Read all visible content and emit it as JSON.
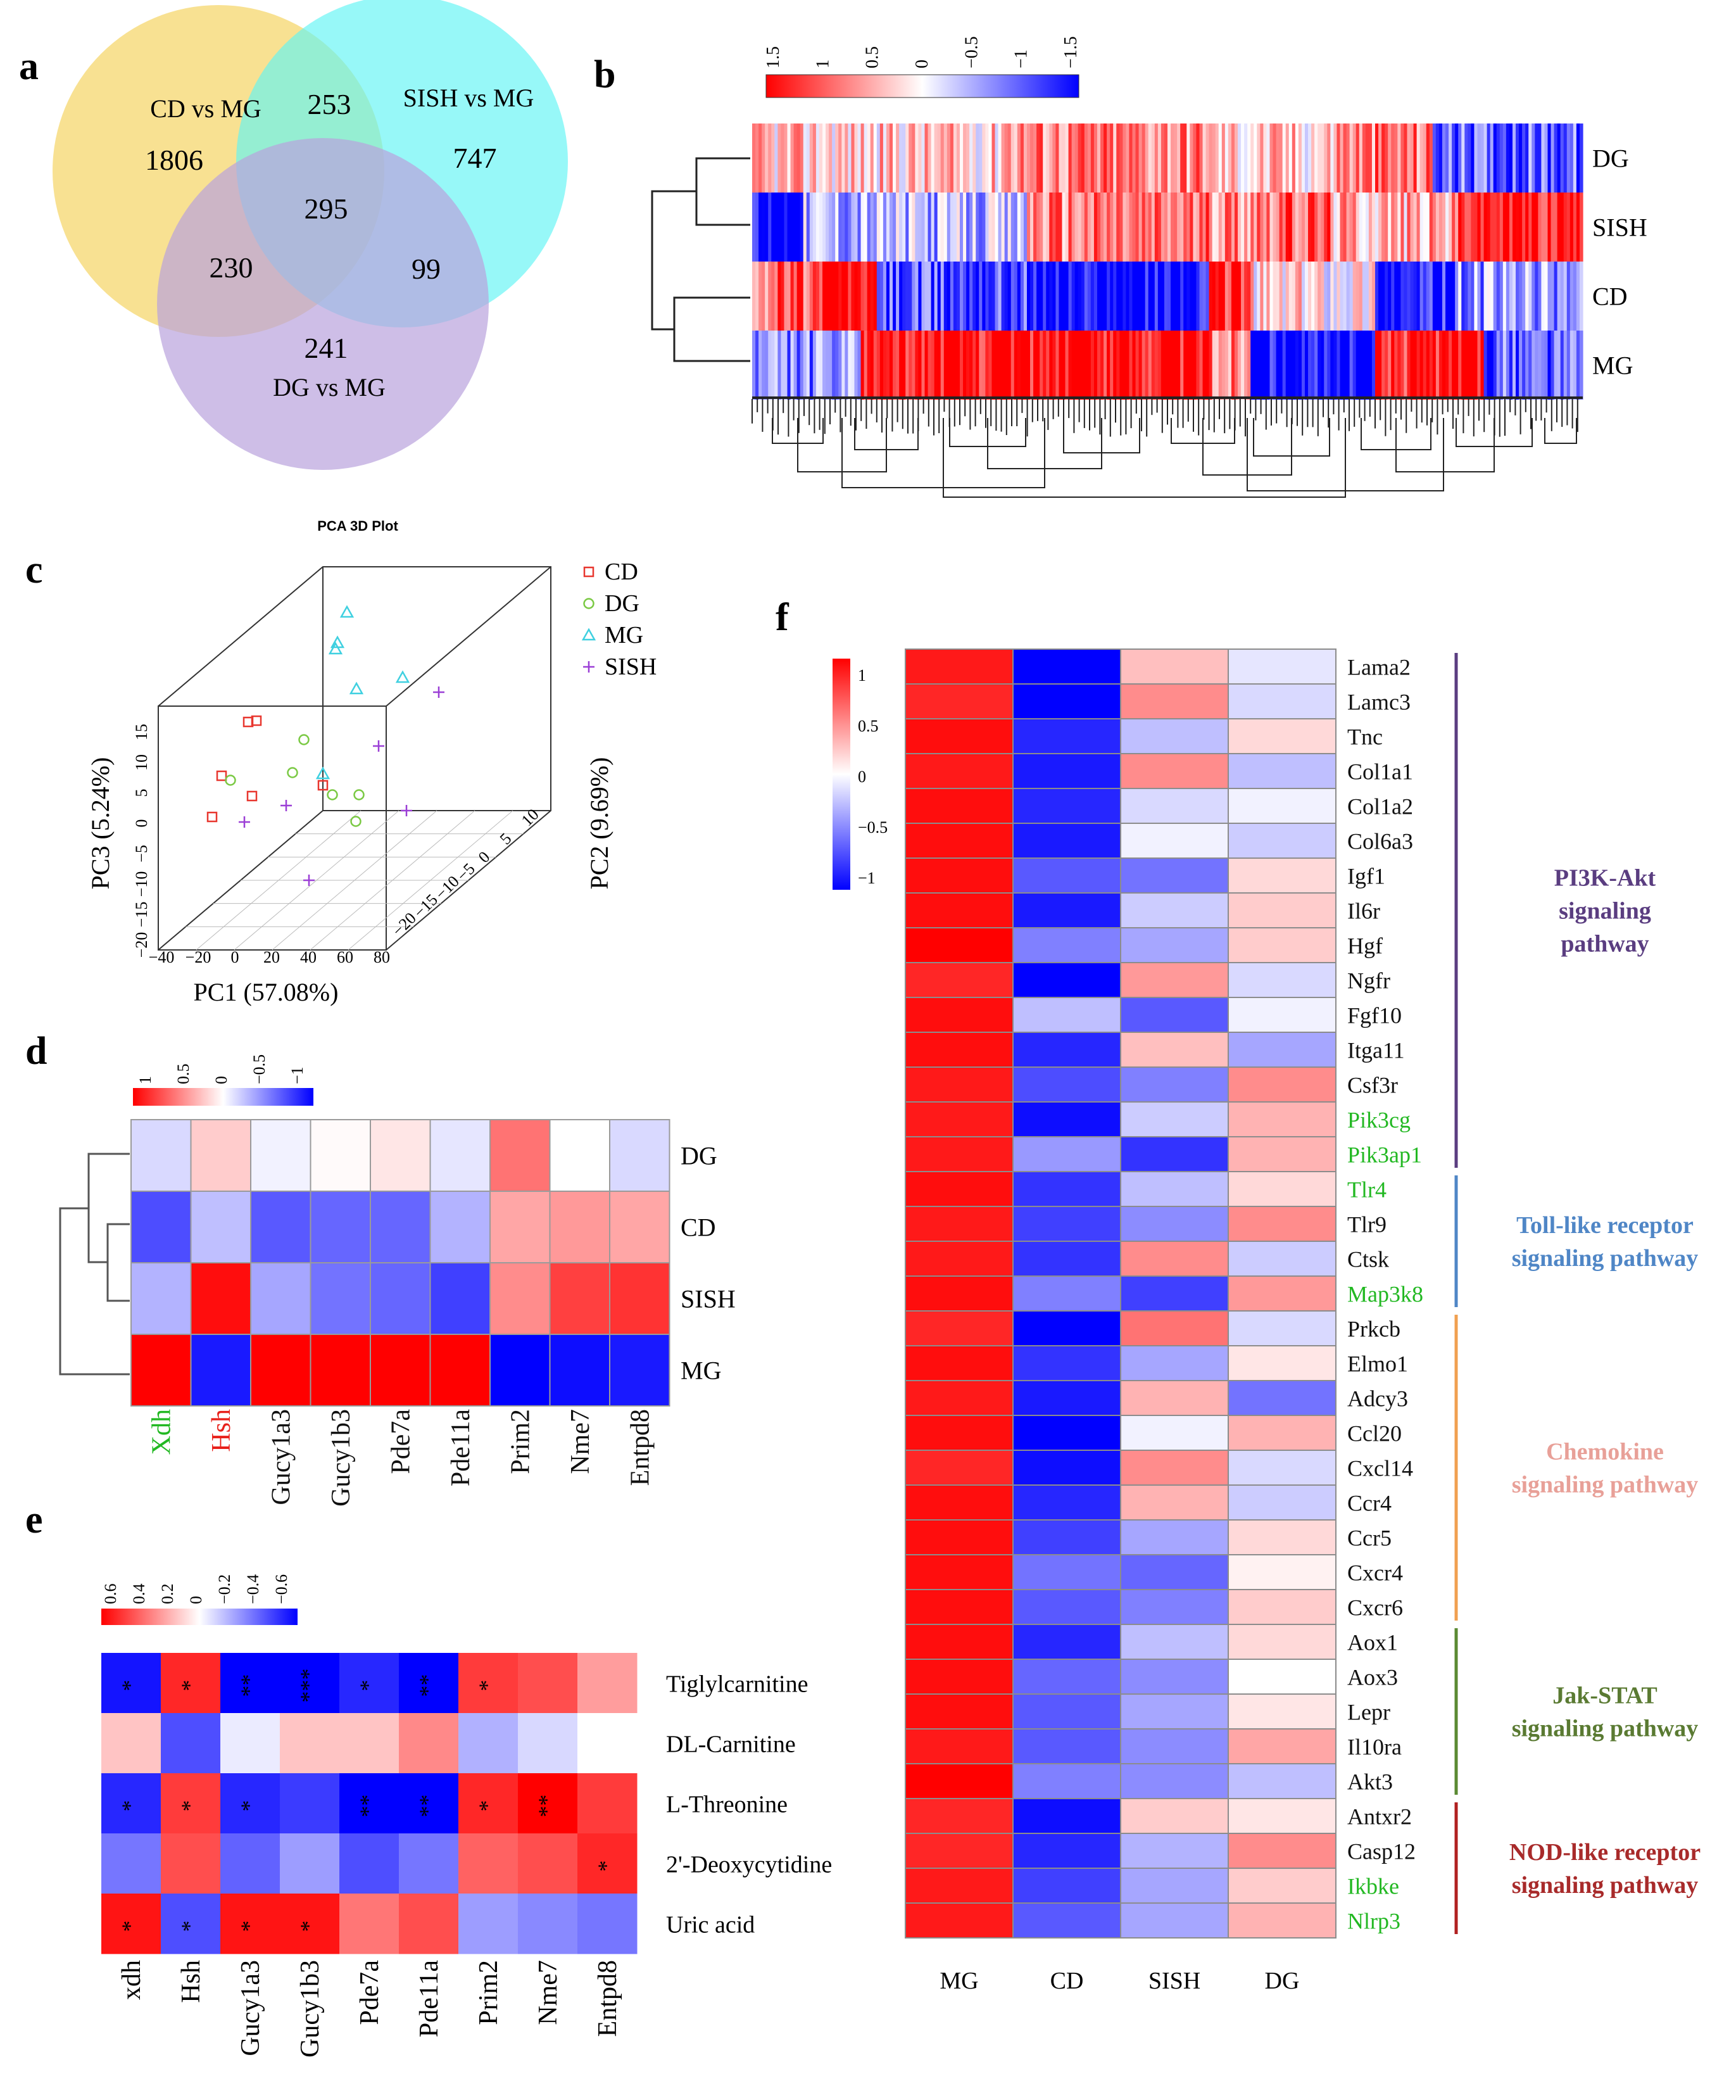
{
  "panels": {
    "a": "a",
    "b": "b",
    "c": "c",
    "d": "d",
    "e": "e",
    "f": "f"
  },
  "venn": {
    "sets": [
      {
        "label": "CD vs MG",
        "color": "#f5d76e"
      },
      {
        "label": "SISH vs MG",
        "color": "#5ff5f5"
      },
      {
        "label": "DG vs MG",
        "color": "#b9a3dd"
      }
    ],
    "counts": {
      "cd_only": "1806",
      "sish_only": "747",
      "dg_only": "241",
      "cd_sish": "253",
      "cd_dg": "230",
      "sish_dg": "99",
      "all": "295"
    }
  },
  "heatmap_b": {
    "scale_ticks": [
      "1.5",
      "1",
      "0.5",
      "0",
      "−0.5",
      "−1",
      "−1.5"
    ],
    "rows": [
      "DG",
      "SISH",
      "CD",
      "MG"
    ]
  },
  "pca": {
    "title": "PCA 3D Plot",
    "xlabel": "PC1 (57.08%)",
    "ylabel": "PC2 (9.69%)",
    "zlabel": "PC3 (5.24%)",
    "x_ticks": [
      "−40",
      "−20",
      "0",
      "20",
      "40",
      "60",
      "80"
    ],
    "y_ticks": [
      "−20",
      "−15",
      "−10",
      "−5",
      "0",
      "5",
      "10"
    ],
    "z_ticks": [
      "−20",
      "−15",
      "−10",
      "−5",
      "0",
      "5",
      "10",
      "15"
    ],
    "legend": [
      {
        "label": "CD",
        "color": "#e8372f",
        "symbol": "square"
      },
      {
        "label": "DG",
        "color": "#7ac943",
        "symbol": "circle"
      },
      {
        "label": "MG",
        "color": "#3fd0e0",
        "symbol": "triangle"
      },
      {
        "label": "SISH",
        "color": "#9b3fd6",
        "symbol": "plus"
      }
    ]
  },
  "heatmap_d": {
    "scale_ticks": [
      "1",
      "0.5",
      "0",
      "−0.5",
      "−1"
    ],
    "rows": [
      "DG",
      "CD",
      "SISH",
      "MG"
    ],
    "cols": [
      {
        "label": "Xdh",
        "color": "#22b822"
      },
      {
        "label": "Hsh",
        "color": "#e8201a"
      },
      {
        "label": "Gucy1a3",
        "color": "#111111"
      },
      {
        "label": "Gucy1b3",
        "color": "#111111"
      },
      {
        "label": "Pde7a",
        "color": "#111111"
      },
      {
        "label": "Pde11a",
        "color": "#111111"
      },
      {
        "label": "Prim2",
        "color": "#111111"
      },
      {
        "label": "Nme7",
        "color": "#111111"
      },
      {
        "label": "Entpd8",
        "color": "#111111"
      }
    ],
    "values": [
      [
        -0.15,
        0.2,
        -0.05,
        0.02,
        0.1,
        -0.1,
        0.55,
        0.0,
        -0.15
      ],
      [
        -0.7,
        -0.25,
        -0.65,
        -0.6,
        -0.6,
        -0.3,
        0.35,
        0.4,
        0.35
      ],
      [
        -0.3,
        0.95,
        -0.35,
        -0.55,
        -0.6,
        -0.75,
        0.45,
        0.75,
        0.8
      ],
      [
        1.0,
        -0.9,
        1.0,
        1.0,
        1.0,
        1.0,
        -1.0,
        -0.95,
        -0.9
      ]
    ]
  },
  "heatmap_e": {
    "scale_ticks": [
      "0.6",
      "0.4",
      "0.2",
      "0",
      "−0.2",
      "−0.4",
      "−0.6"
    ],
    "rows": [
      "Tiglylcarnitine",
      "DL-Carnitine",
      "L-Threonine",
      "2'-Deoxycytidine",
      "Uric acid"
    ],
    "cols": [
      "xdh",
      "Hsh",
      "Gucy1a3",
      "Gucy1b3",
      "Pde7a",
      "Pde11a",
      "Prim2",
      "Nme7",
      "Entpd8"
    ],
    "values": [
      [
        -0.6,
        0.55,
        -0.65,
        -0.7,
        -0.55,
        -0.65,
        0.5,
        0.45,
        0.25
      ],
      [
        0.15,
        -0.45,
        -0.05,
        0.15,
        0.15,
        0.3,
        -0.2,
        -0.1,
        0.0
      ],
      [
        -0.55,
        0.5,
        -0.55,
        -0.5,
        -0.7,
        -0.7,
        0.55,
        0.65,
        0.5
      ],
      [
        -0.35,
        0.45,
        -0.4,
        -0.25,
        -0.45,
        -0.35,
        0.4,
        0.45,
        0.55
      ],
      [
        0.6,
        -0.45,
        0.6,
        0.6,
        0.35,
        0.45,
        -0.25,
        -0.3,
        -0.35
      ]
    ],
    "stars": [
      [
        "*",
        "*",
        "**",
        "***",
        "*",
        "**",
        "*",
        "",
        ""
      ],
      [
        "",
        "",
        "",
        "",
        "",
        "",
        "",
        "",
        ""
      ],
      [
        "*",
        "*",
        "*",
        "",
        "**",
        "**",
        "*",
        "**",
        ""
      ],
      [
        "",
        "",
        "",
        "",
        "",
        "",
        "",
        "",
        "*"
      ],
      [
        "*",
        "*",
        "*",
        "*",
        "",
        "",
        "",
        "",
        ""
      ]
    ]
  },
  "heatmap_f": {
    "scale_ticks": [
      "1",
      "0.5",
      "0",
      "−0.5",
      "−1"
    ],
    "cols": [
      "MG",
      "CD",
      "SISH",
      "DG"
    ],
    "genes": [
      {
        "name": "Lama2",
        "color": "#111111",
        "values": [
          0.9,
          -1.0,
          0.25,
          -0.1
        ]
      },
      {
        "name": "Lamc3",
        "color": "#111111",
        "values": [
          0.85,
          -1.0,
          0.45,
          -0.15
        ]
      },
      {
        "name": "Tnc",
        "color": "#111111",
        "values": [
          0.95,
          -0.85,
          -0.25,
          0.15
        ]
      },
      {
        "name": "Col1a1",
        "color": "#111111",
        "values": [
          0.9,
          -0.9,
          0.45,
          -0.25
        ]
      },
      {
        "name": "Col1a2",
        "color": "#111111",
        "values": [
          0.95,
          -0.85,
          -0.15,
          -0.05
        ]
      },
      {
        "name": "Col6a3",
        "color": "#111111",
        "values": [
          0.95,
          -0.9,
          -0.05,
          -0.2
        ]
      },
      {
        "name": "Igf1",
        "color": "#111111",
        "values": [
          0.95,
          -0.65,
          -0.55,
          0.15
        ]
      },
      {
        "name": "Il6r",
        "color": "#111111",
        "values": [
          0.95,
          -0.9,
          -0.2,
          0.2
        ]
      },
      {
        "name": "Hgf",
        "color": "#111111",
        "values": [
          1.0,
          -0.5,
          -0.35,
          0.2
        ]
      },
      {
        "name": "Ngfr",
        "color": "#111111",
        "values": [
          0.85,
          -1.0,
          0.4,
          -0.15
        ]
      },
      {
        "name": "Fgf10",
        "color": "#111111",
        "values": [
          0.95,
          -0.25,
          -0.65,
          -0.05
        ]
      },
      {
        "name": "Itga11",
        "color": "#111111",
        "values": [
          0.95,
          -0.85,
          0.25,
          -0.35
        ]
      },
      {
        "name": "Csf3r",
        "color": "#111111",
        "values": [
          0.9,
          -0.7,
          -0.5,
          0.45
        ]
      },
      {
        "name": "Pik3cg",
        "color": "#22b822",
        "values": [
          0.9,
          -0.95,
          -0.2,
          0.3
        ]
      },
      {
        "name": "Pik3ap1",
        "color": "#22b822",
        "values": [
          0.9,
          -0.4,
          -0.8,
          0.3
        ]
      },
      {
        "name": "Tlr4",
        "color": "#22b822",
        "values": [
          0.95,
          -0.8,
          -0.25,
          0.15
        ]
      },
      {
        "name": "Tlr9",
        "color": "#111111",
        "values": [
          0.9,
          -0.75,
          -0.45,
          0.45
        ]
      },
      {
        "name": "Ctsk",
        "color": "#111111",
        "values": [
          0.9,
          -0.8,
          0.45,
          -0.2
        ]
      },
      {
        "name": "Map3k8",
        "color": "#22b822",
        "values": [
          0.95,
          -0.5,
          -0.75,
          0.4
        ]
      },
      {
        "name": "Prkcb",
        "color": "#111111",
        "values": [
          0.85,
          -1.0,
          0.55,
          -0.15
        ]
      },
      {
        "name": "Elmo1",
        "color": "#111111",
        "values": [
          0.95,
          -0.8,
          -0.35,
          0.1
        ]
      },
      {
        "name": "Adcy3",
        "color": "#111111",
        "values": [
          0.9,
          -0.9,
          0.3,
          -0.55
        ]
      },
      {
        "name": "Ccl20",
        "color": "#111111",
        "values": [
          0.95,
          -1.0,
          -0.05,
          0.3
        ]
      },
      {
        "name": "Cxcl14",
        "color": "#111111",
        "values": [
          0.85,
          -0.95,
          0.45,
          -0.15
        ]
      },
      {
        "name": "Ccr4",
        "color": "#111111",
        "values": [
          0.95,
          -0.85,
          0.3,
          -0.2
        ]
      },
      {
        "name": "Ccr5",
        "color": "#111111",
        "values": [
          0.95,
          -0.75,
          -0.35,
          0.15
        ]
      },
      {
        "name": "Cxcr4",
        "color": "#111111",
        "values": [
          0.95,
          -0.55,
          -0.6,
          0.05
        ]
      },
      {
        "name": "Cxcr6",
        "color": "#111111",
        "values": [
          0.95,
          -0.65,
          -0.5,
          0.2
        ]
      },
      {
        "name": "Aox1",
        "color": "#111111",
        "values": [
          0.95,
          -0.85,
          -0.25,
          0.15
        ]
      },
      {
        "name": "Aox3",
        "color": "#111111",
        "values": [
          0.95,
          -0.6,
          -0.45,
          0.0
        ]
      },
      {
        "name": "Lepr",
        "color": "#111111",
        "values": [
          0.95,
          -0.65,
          -0.35,
          0.1
        ]
      },
      {
        "name": "Il10ra",
        "color": "#111111",
        "values": [
          0.9,
          -0.65,
          -0.45,
          0.35
        ]
      },
      {
        "name": "Akt3",
        "color": "#111111",
        "values": [
          1.0,
          -0.5,
          -0.45,
          -0.25
        ]
      },
      {
        "name": "Antxr2",
        "color": "#111111",
        "values": [
          0.85,
          -0.95,
          0.2,
          0.1
        ]
      },
      {
        "name": "Casp12",
        "color": "#111111",
        "values": [
          0.85,
          -0.85,
          -0.3,
          0.45
        ]
      },
      {
        "name": "Ikbke",
        "color": "#22b822",
        "values": [
          0.9,
          -0.75,
          -0.35,
          0.2
        ]
      },
      {
        "name": "Nlrp3",
        "color": "#22b822",
        "values": [
          0.9,
          -0.65,
          -0.35,
          0.3
        ]
      }
    ],
    "pathways": [
      {
        "lines": [
          "PI3K-Akt",
          "signaling",
          "pathway"
        ],
        "color": "#5a3d80",
        "start": 0,
        "end": 14
      },
      {
        "lines": [
          "Toll-like receptor",
          "signaling pathway"
        ],
        "color": "#4f86c6",
        "start": 15,
        "end": 18
      },
      {
        "lines": [
          "Chemokine",
          "signaling pathway"
        ],
        "color": "#e8a098",
        "start": 19,
        "end": 27
      },
      {
        "lines": [
          "Jak-STAT",
          "signaling pathway"
        ],
        "color": "#5a7a32",
        "start": 28,
        "end": 32
      },
      {
        "lines": [
          "NOD-like receptor",
          "signaling pathway"
        ],
        "color": "#a82a2a",
        "start": 33,
        "end": 36
      }
    ],
    "pathway_line_colors": [
      "#5a3d80",
      "#4f86c6",
      "#f0a050",
      "#5a8a32",
      "#b02020"
    ]
  }
}
